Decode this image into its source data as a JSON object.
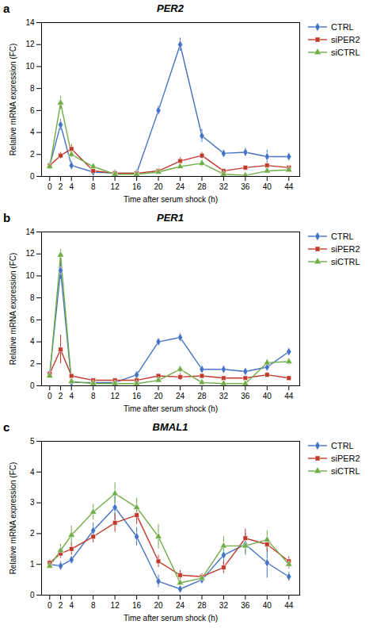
{
  "chart_data": [
    {
      "type": "line",
      "title": "PER2",
      "annotations": [
        "a"
      ],
      "xlabel": "Time after serum shock (h)",
      "ylabel": "Relative mRNA expression (FC)",
      "x": [
        0,
        2,
        4,
        8,
        12,
        16,
        20,
        24,
        28,
        32,
        36,
        40,
        44
      ],
      "xlim": [
        -1.5,
        46
      ],
      "xticks": [
        0,
        2,
        4,
        8,
        12,
        16,
        20,
        24,
        28,
        32,
        36,
        40,
        44
      ],
      "ylim": [
        0,
        14
      ],
      "yticks": [
        0,
        2,
        4,
        6,
        8,
        10,
        12,
        14
      ],
      "grid": false,
      "legend": "right",
      "series": [
        {
          "name": "CTRL",
          "color": "#4472C4",
          "marker": "diamond",
          "values": [
            1.0,
            4.7,
            1.0,
            0.4,
            0.3,
            0.3,
            6.0,
            12.0,
            3.7,
            2.1,
            2.2,
            1.8,
            1.8
          ],
          "errors": [
            0.2,
            0.5,
            0.4,
            0.1,
            0.05,
            0.1,
            0.4,
            0.6,
            0.6,
            0.3,
            0.4,
            0.6,
            0.3
          ]
        },
        {
          "name": "siPER2",
          "color": "#C0392B",
          "marker": "square",
          "values": [
            1.0,
            1.9,
            2.5,
            0.5,
            0.3,
            0.3,
            0.5,
            1.4,
            1.9,
            0.5,
            0.8,
            1.0,
            0.8
          ],
          "errors": [
            0.1,
            0.3,
            0.4,
            0.1,
            0.05,
            0.05,
            0.1,
            0.3,
            0.3,
            0.1,
            0.15,
            0.2,
            0.1
          ]
        },
        {
          "name": "siCTRL",
          "color": "#70AD47",
          "marker": "triangle",
          "values": [
            0.9,
            6.7,
            2.0,
            0.9,
            0.2,
            0.2,
            0.4,
            0.9,
            1.2,
            0.2,
            0.1,
            0.5,
            0.6
          ],
          "errors": [
            0.1,
            0.6,
            0.3,
            0.2,
            0.05,
            0.05,
            0.1,
            0.15,
            0.3,
            0.05,
            0.05,
            0.1,
            0.1
          ]
        }
      ]
    },
    {
      "type": "line",
      "title": "PER1",
      "annotations": [
        "b"
      ],
      "xlabel": "Time after serum shock (h)",
      "ylabel": "Relative mRNA expression (FC)",
      "x": [
        0,
        2,
        4,
        8,
        12,
        16,
        20,
        24,
        28,
        32,
        36,
        40,
        44
      ],
      "xlim": [
        -1.5,
        46
      ],
      "xticks": [
        0,
        2,
        4,
        8,
        12,
        16,
        20,
        24,
        28,
        32,
        36,
        40,
        44
      ],
      "ylim": [
        0,
        14
      ],
      "yticks": [
        0,
        2,
        4,
        6,
        8,
        10,
        12,
        14
      ],
      "grid": false,
      "legend": "right",
      "series": [
        {
          "name": "CTRL",
          "color": "#4472C4",
          "marker": "diamond",
          "values": [
            1.1,
            10.5,
            0.3,
            0.3,
            0.3,
            1.0,
            4.0,
            4.4,
            1.5,
            1.5,
            1.3,
            1.7,
            3.1
          ],
          "errors": [
            0.2,
            0.8,
            0.1,
            0.05,
            0.05,
            0.2,
            0.3,
            0.4,
            0.3,
            0.3,
            0.2,
            0.3,
            0.3
          ]
        },
        {
          "name": "siPER2",
          "color": "#C0392B",
          "marker": "square",
          "values": [
            1.1,
            3.3,
            0.9,
            0.5,
            0.5,
            0.5,
            0.9,
            0.8,
            0.9,
            0.7,
            0.7,
            1.0,
            0.7
          ],
          "errors": [
            0.1,
            1.3,
            0.15,
            0.1,
            0.1,
            0.1,
            0.2,
            0.3,
            0.2,
            0.1,
            0.1,
            0.2,
            0.1
          ]
        },
        {
          "name": "siCTRL",
          "color": "#70AD47",
          "marker": "triangle",
          "values": [
            0.9,
            11.9,
            0.4,
            0.2,
            0.2,
            0.2,
            0.5,
            1.5,
            0.3,
            0.2,
            0.2,
            2.1,
            2.2
          ],
          "errors": [
            0.1,
            0.5,
            0.1,
            0.05,
            0.05,
            0.05,
            0.1,
            0.3,
            0.1,
            0.05,
            0.05,
            0.3,
            0.3
          ]
        }
      ]
    },
    {
      "type": "line",
      "title": "BMAL1",
      "annotations": [
        "c"
      ],
      "xlabel": "Time after serum shock (h)",
      "ylabel": "Relative mRNA expression (FC)",
      "x": [
        0,
        2,
        4,
        8,
        12,
        16,
        20,
        24,
        28,
        32,
        36,
        40,
        44
      ],
      "xlim": [
        -1.5,
        46
      ],
      "xticks": [
        0,
        2,
        4,
        8,
        12,
        16,
        20,
        24,
        28,
        32,
        36,
        40,
        44
      ],
      "ylim": [
        0,
        5
      ],
      "yticks": [
        0,
        1,
        2,
        3,
        4,
        5
      ],
      "grid": false,
      "legend": "right",
      "series": [
        {
          "name": "CTRL",
          "color": "#4472C4",
          "marker": "diamond",
          "values": [
            1.0,
            0.95,
            1.15,
            2.1,
            2.85,
            1.9,
            0.45,
            0.2,
            0.5,
            1.3,
            1.65,
            1.05,
            0.6
          ],
          "errors": [
            0.1,
            0.15,
            0.1,
            0.25,
            0.4,
            0.3,
            0.2,
            0.1,
            0.1,
            0.3,
            0.35,
            0.5,
            0.15
          ]
        },
        {
          "name": "siPER2",
          "color": "#C0392B",
          "marker": "square",
          "values": [
            1.05,
            1.35,
            1.5,
            1.9,
            2.35,
            2.6,
            1.1,
            0.65,
            0.6,
            0.9,
            1.85,
            1.65,
            1.1
          ],
          "errors": [
            0.1,
            0.15,
            0.2,
            0.2,
            0.3,
            0.3,
            0.2,
            0.15,
            0.1,
            0.2,
            0.3,
            0.25,
            0.15
          ]
        },
        {
          "name": "siCTRL",
          "color": "#70AD47",
          "marker": "triangle",
          "values": [
            0.95,
            1.45,
            1.95,
            2.7,
            3.3,
            2.85,
            1.9,
            0.4,
            0.55,
            1.6,
            1.6,
            1.8,
            1.0
          ],
          "errors": [
            0.1,
            0.2,
            0.3,
            0.25,
            0.35,
            0.3,
            0.4,
            0.1,
            0.1,
            0.3,
            0.25,
            0.3,
            0.15
          ]
        }
      ]
    }
  ]
}
